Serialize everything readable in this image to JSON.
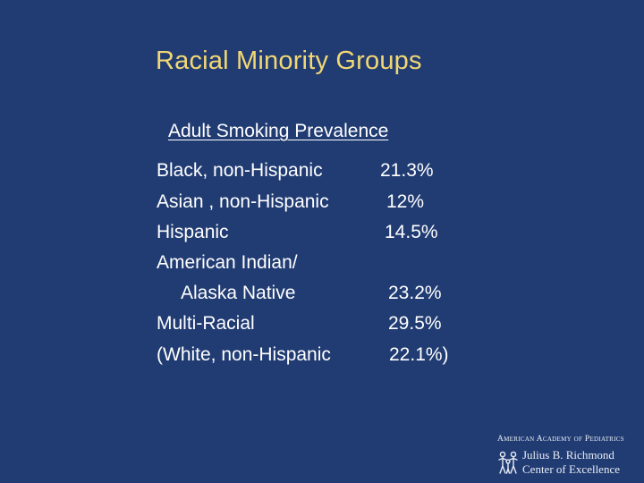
{
  "slide": {
    "title": "Racial Minority Groups",
    "subtitle": "Adult Smoking Prevalence",
    "rows": [
      {
        "label": "Black, non-Hispanic",
        "value": "21.3%"
      },
      {
        "label": "Asian , non-Hispanic",
        "value": "12%"
      },
      {
        "label": "Hispanic",
        "value": "14.5%"
      },
      {
        "label": "American Indian/",
        "value": ""
      },
      {
        "label": "Alaska Native",
        "value": "23.2%"
      },
      {
        "label": "Multi-Racial",
        "value": "29.5%"
      },
      {
        "label": "(White, non-Hispanic",
        "value": "22.1%)"
      }
    ]
  },
  "footer_logo": {
    "organization": "American Academy of Pediatrics",
    "center_line1": "Julius B. Richmond",
    "center_line2": "Center of Excellence",
    "icon": "family-figures-icon"
  },
  "colors": {
    "background": "#213c73",
    "title": "#f2d774",
    "text": "#ffffff"
  }
}
